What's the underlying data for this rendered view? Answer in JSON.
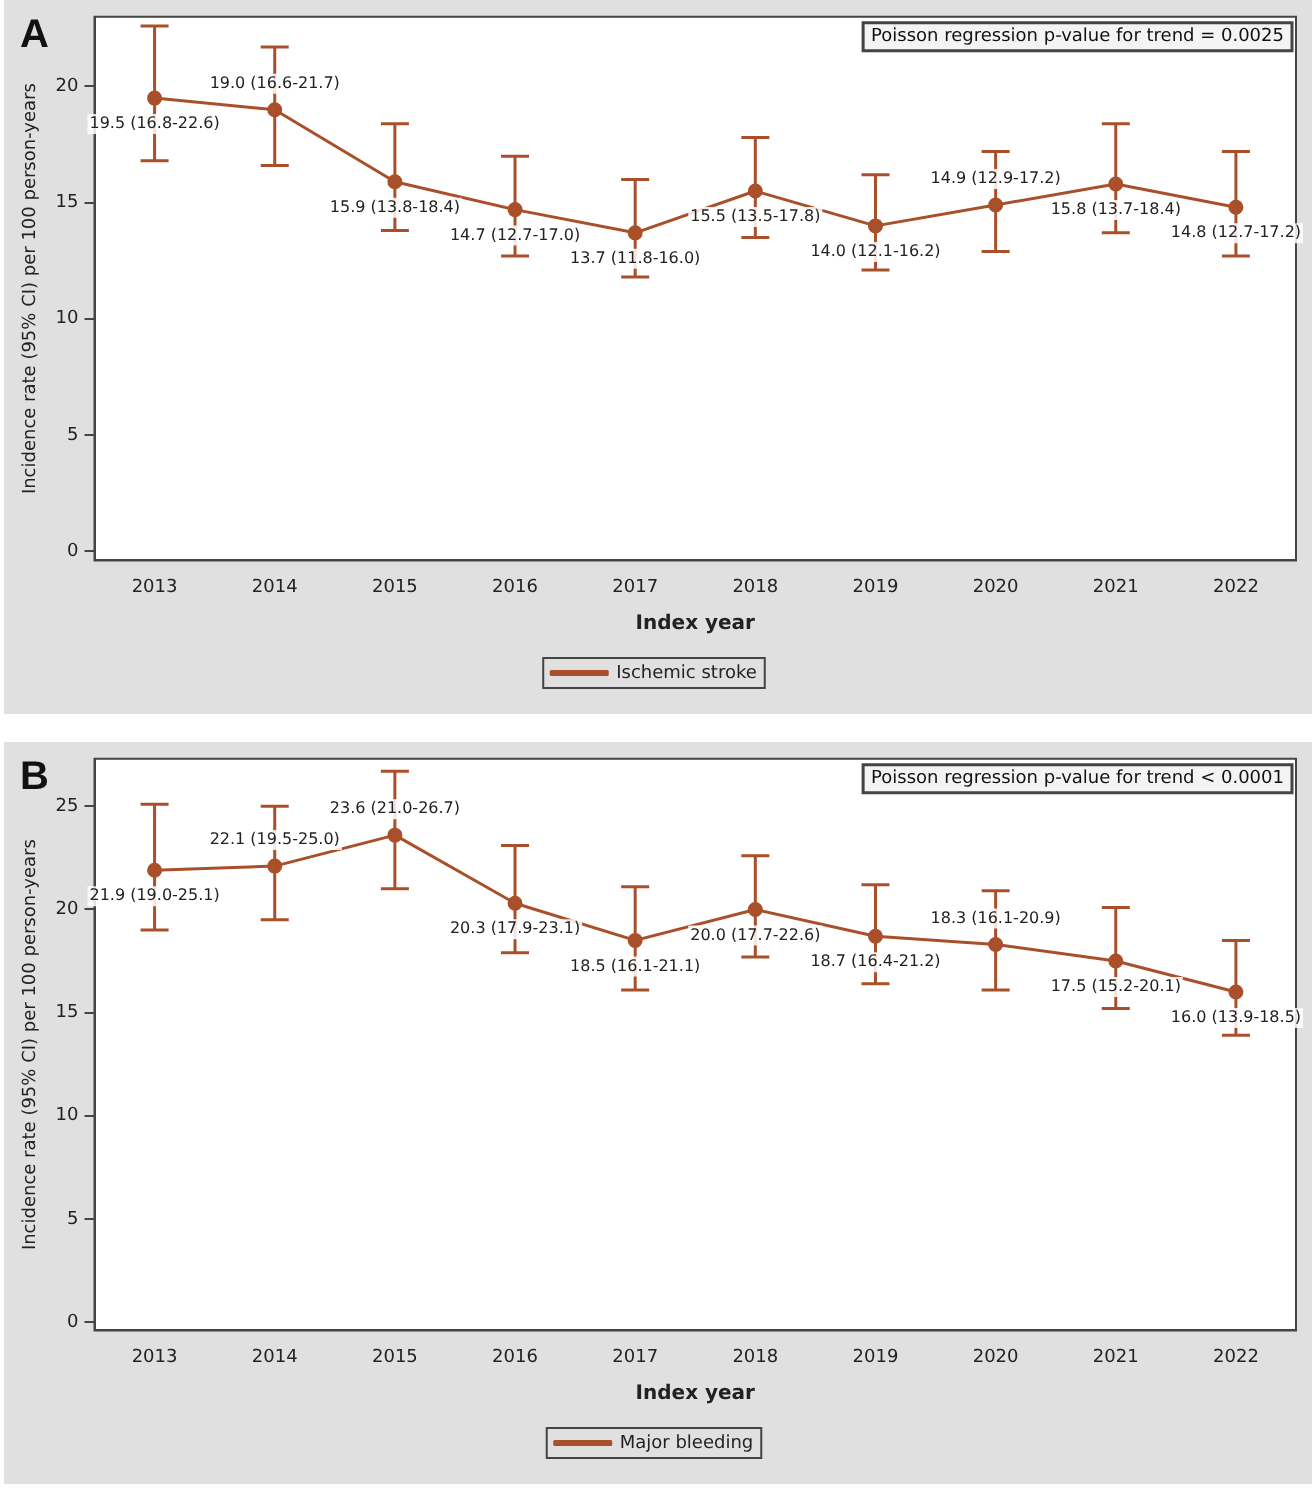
{
  "chart_data": [
    {
      "type": "line",
      "title": "A",
      "xlabel": "Index year",
      "ylabel": "Incidence rate (95% CI) per 100 person-years",
      "categories": [
        "2013",
        "2014",
        "2015",
        "2016",
        "2017",
        "2018",
        "2019",
        "2020",
        "2021",
        "2022"
      ],
      "series": [
        {
          "name": "Ischemic stroke",
          "color": "#a9502b",
          "values": [
            19.5,
            19.0,
            15.9,
            14.7,
            13.7,
            15.5,
            14.0,
            14.9,
            15.8,
            14.8
          ],
          "errors": [
            [
              16.8,
              22.6
            ],
            [
              16.6,
              21.7
            ],
            [
              13.8,
              18.4
            ],
            [
              12.7,
              17.0
            ],
            [
              11.8,
              16.0
            ],
            [
              13.5,
              17.8
            ],
            [
              12.1,
              16.2
            ],
            [
              12.9,
              17.2
            ],
            [
              13.7,
              18.4
            ],
            [
              12.7,
              17.2
            ]
          ],
          "value_labels": [
            "19.5 (16.8-22.6)",
            "19.0 (16.6-21.7)",
            "15.9 (13.8-18.4)",
            "14.7 (12.7-17.0)",
            "13.7 (11.8-16.0)",
            "15.5 (13.5-17.8)",
            "14.0 (12.1-16.2)",
            "14.9 (12.9-17.2)",
            "15.8 (13.7-18.4)",
            "14.8 (12.7-17.2)"
          ]
        }
      ],
      "ylim": [
        -0.4,
        23
      ],
      "yticks": [
        0,
        5,
        10,
        15,
        20
      ],
      "annotations": [
        "Poisson regression p-value for trend = 0.0025"
      ],
      "legend": "bottom",
      "marker": "circle"
    },
    {
      "type": "line",
      "title": "B",
      "xlabel": "Index year",
      "ylabel": "Incidence rate (95% CI) per 100 person-years",
      "categories": [
        "2013",
        "2014",
        "2015",
        "2016",
        "2017",
        "2018",
        "2019",
        "2020",
        "2021",
        "2022"
      ],
      "series": [
        {
          "name": "Major bleeding",
          "color": "#a9502b",
          "values": [
            21.9,
            22.1,
            23.6,
            20.3,
            18.5,
            20.0,
            18.7,
            18.3,
            17.5,
            16.0
          ],
          "errors": [
            [
              19.0,
              25.1
            ],
            [
              19.5,
              25.0
            ],
            [
              21.0,
              26.7
            ],
            [
              17.9,
              23.1
            ],
            [
              16.1,
              21.1
            ],
            [
              17.7,
              22.6
            ],
            [
              16.4,
              21.2
            ],
            [
              16.1,
              20.9
            ],
            [
              15.2,
              20.1
            ],
            [
              13.9,
              18.5
            ]
          ],
          "value_labels": [
            "21.9 (19.0-25.1)",
            "22.1 (19.5-25.0)",
            "23.6 (21.0-26.7)",
            "20.3 (17.9-23.1)",
            "18.5 (16.1-21.1)",
            "20.0 (17.7-22.6)",
            "18.7 (16.4-21.2)",
            "18.3 (16.1-20.9)",
            "17.5 (15.2-20.1)",
            "16.0 (13.9-18.5)"
          ]
        }
      ],
      "ylim": [
        -0.4,
        27.3
      ],
      "yticks": [
        0,
        5,
        10,
        15,
        20,
        25
      ],
      "annotations": [
        "Poisson regression p-value for trend < 0.0001"
      ],
      "legend": "bottom",
      "marker": "circle"
    }
  ]
}
